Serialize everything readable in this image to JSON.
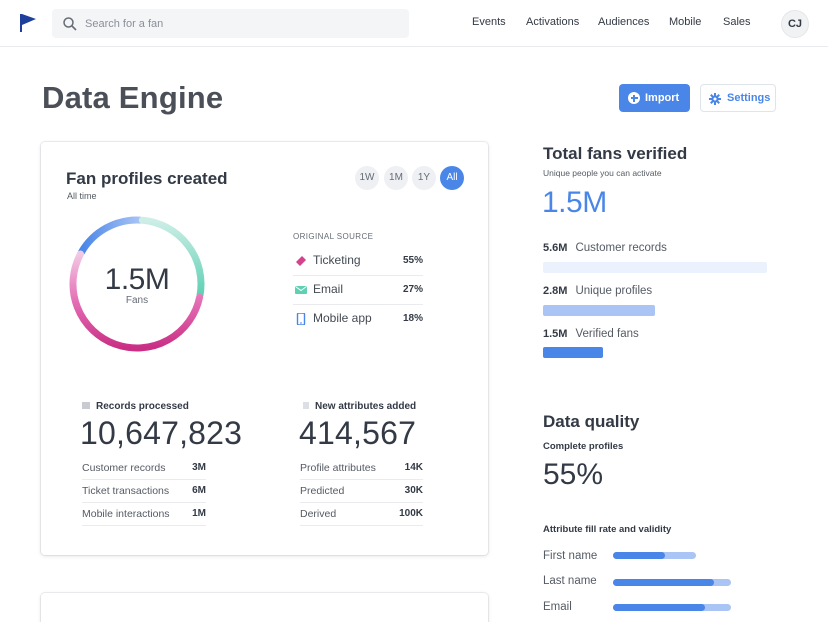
{
  "nav": {
    "search_placeholder": "Search for a fan",
    "items": [
      "Events",
      "Activations",
      "Audiences",
      "Mobile",
      "Sales"
    ],
    "avatar_initials": "CJ"
  },
  "page": {
    "title": "Data Engine",
    "import_label": "Import",
    "settings_label": "Settings"
  },
  "fan_profiles": {
    "title": "Fan profiles created",
    "subtitle": "All time",
    "periods": [
      "1W",
      "1M",
      "1Y",
      "All"
    ],
    "active_period": "All",
    "donut_value": "1.5M",
    "donut_label": "Fans",
    "source_header": "ORIGINAL SOURCE",
    "sources": [
      {
        "name": "Ticketing",
        "pct": "55%",
        "icon": "ticket-icon",
        "color": "#d3428f"
      },
      {
        "name": "Email",
        "pct": "27%",
        "icon": "email-icon",
        "color": "#5fd0b3"
      },
      {
        "name": "Mobile app",
        "pct": "18%",
        "icon": "mobile-icon",
        "color": "#4a86e8"
      }
    ],
    "donut_segments": [
      {
        "fraction": 0.55,
        "color": "#d3428f"
      },
      {
        "fraction": 0.27,
        "color": "#7ed8c0"
      },
      {
        "fraction": 0.18,
        "color": "#6a9ef0"
      }
    ],
    "records": {
      "label": "Records processed",
      "value": "10,647,823",
      "rows": [
        {
          "k": "Customer records",
          "v": "3M"
        },
        {
          "k": "Ticket transactions",
          "v": "6M"
        },
        {
          "k": "Mobile interactions",
          "v": "1M"
        }
      ]
    },
    "attributes": {
      "label": "New attributes added",
      "value": "414,567",
      "rows": [
        {
          "k": "Profile attributes",
          "v": "14K"
        },
        {
          "k": "Predicted",
          "v": "30K"
        },
        {
          "k": "Derived",
          "v": "100K"
        }
      ]
    }
  },
  "verified": {
    "title": "Total fans verified",
    "subtitle": "Unique people you can activate",
    "value": "1.5M",
    "rows": [
      {
        "value": "5.6M",
        "label": "Customer records",
        "fraction": 1.0,
        "color": "#ecf2fd"
      },
      {
        "value": "2.8M",
        "label": "Unique profiles",
        "fraction": 0.5,
        "color": "#a9c4f5"
      },
      {
        "value": "1.5M",
        "label": "Verified fans",
        "fraction": 0.27,
        "color": "#4a86e8"
      }
    ]
  },
  "quality": {
    "title": "Data quality",
    "complete_label": "Complete profiles",
    "complete_value": "55%",
    "attr_header": "Attribute fill rate and validity",
    "attrs": [
      {
        "label": "First name",
        "fill": 0.44,
        "track": 0.7
      },
      {
        "label": "Last name",
        "fill": 0.86,
        "track": 1.0
      },
      {
        "label": "Email",
        "fill": 0.78,
        "track": 1.0
      }
    ]
  }
}
